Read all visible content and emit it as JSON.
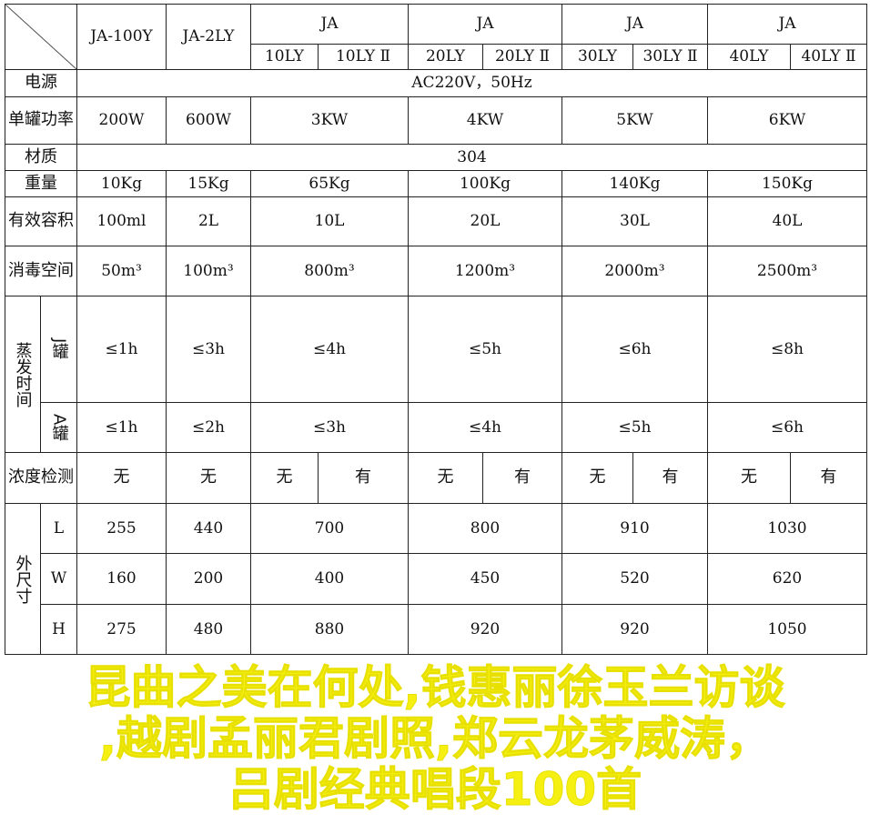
{
  "header": {
    "models": [
      "JA-100Y",
      "JA-2LY"
    ],
    "group": "JA",
    "sub": [
      "10LY",
      "10LY Ⅱ",
      "20LY",
      "20LY Ⅱ",
      "30LY",
      "30LY Ⅱ",
      "40LY",
      "40LY Ⅱ"
    ]
  },
  "rows": {
    "power_source": {
      "label": "电源",
      "value": "AC220V，50Hz"
    },
    "power": {
      "label": "单罐功率",
      "values": [
        "200W",
        "600W",
        "3KW",
        "4KW",
        "5KW",
        "6KW"
      ]
    },
    "material": {
      "label": "材质",
      "value": "304"
    },
    "weight": {
      "label": "重量",
      "values": [
        "10Kg",
        "15Kg",
        "65Kg",
        "100Kg",
        "140Kg",
        "150Kg"
      ]
    },
    "volume": {
      "label": "有效容积",
      "values": [
        "100ml",
        "2L",
        "10L",
        "20L",
        "30L",
        "40L"
      ]
    },
    "disinfect": {
      "label": "消毒空间",
      "values": [
        "50m³",
        "100m³",
        "800m³",
        "1200m³",
        "2000m³",
        "2500m³"
      ]
    },
    "evap": {
      "label": "蒸发时间",
      "j_label": "J罐",
      "a_label": "A罐",
      "j_values": [
        "≤1h",
        "≤3h",
        "≤4h",
        "≤5h",
        "≤6h",
        "≤8h"
      ],
      "a_values": [
        "≤1h",
        "≤2h",
        "≤3h",
        "≤4h",
        "≤5h",
        "≤6h"
      ]
    },
    "concentration": {
      "label": "浓度检测",
      "values": [
        "无",
        "无",
        "无",
        "有",
        "无",
        "有",
        "无",
        "有",
        "无",
        "有"
      ]
    },
    "size": {
      "label": "外尺寸",
      "dims": [
        "L",
        "W",
        "H"
      ],
      "L": [
        "255",
        "440",
        "700",
        "800",
        "910",
        "1030"
      ],
      "W": [
        "160",
        "200",
        "400",
        "450",
        "520",
        "620"
      ],
      "H": [
        "275",
        "480",
        "880",
        "920",
        "920",
        "1050"
      ]
    }
  },
  "overlay": {
    "lines": [
      "昆曲之美在何处,钱惠丽徐玉兰访谈",
      ",越剧孟丽君剧照,郑云龙茅威涛，",
      "吕剧经典唱段100首"
    ],
    "color": "#f5f011"
  }
}
